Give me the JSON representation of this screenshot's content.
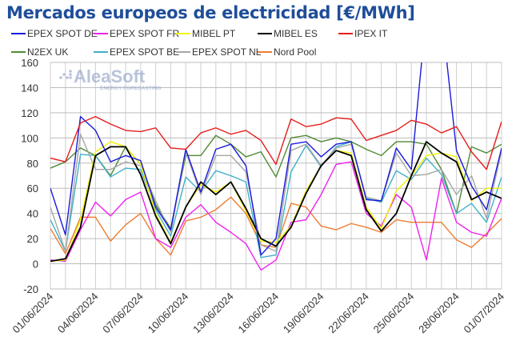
{
  "chart_data": {
    "type": "line",
    "title": "Mercados europeos de electricidad [€/MWh]",
    "xlabel": "",
    "ylabel": "",
    "ylim": [
      -20,
      160
    ],
    "yticks": [
      -20,
      0,
      20,
      40,
      60,
      80,
      100,
      120,
      140,
      160
    ],
    "grid": true,
    "legend_placement": "top",
    "x": [
      "01/06/2024",
      "02/06/2024",
      "03/06/2024",
      "04/06/2024",
      "05/06/2024",
      "06/06/2024",
      "07/06/2024",
      "08/06/2024",
      "09/06/2024",
      "10/06/2024",
      "11/06/2024",
      "12/06/2024",
      "13/06/2024",
      "14/06/2024",
      "15/06/2024",
      "16/06/2024",
      "17/06/2024",
      "18/06/2024",
      "19/06/2024",
      "20/06/2024",
      "21/06/2024",
      "22/06/2024",
      "23/06/2024",
      "24/06/2024",
      "25/06/2024",
      "26/06/2024",
      "27/06/2024",
      "28/06/2024",
      "29/06/2024",
      "30/06/2024",
      "01/07/2024"
    ],
    "xtick_labels": [
      "01/06/2024",
      "04/06/2024",
      "07/06/2024",
      "10/06/2024",
      "13/06/2024",
      "16/06/2024",
      "19/06/2024",
      "22/06/2024",
      "25/06/2024",
      "28/06/2024",
      "01/07/2024"
    ],
    "series": [
      {
        "name": "EPEX SPOT DE",
        "color": "#1a1adb",
        "values": [
          60,
          23,
          117,
          106,
          81,
          86,
          82,
          45,
          27,
          91,
          57,
          91,
          95,
          78,
          7,
          20,
          95,
          97,
          85,
          95,
          97,
          51,
          50,
          92,
          75,
          200,
          200,
          90,
          62,
          43,
          92
        ]
      },
      {
        "name": "EPEX SPOT FR",
        "color": "#ee22ee",
        "values": [
          3,
          2,
          27,
          49,
          38,
          51,
          57,
          20,
          13,
          37,
          47,
          33,
          25,
          16,
          -5,
          3,
          33,
          35,
          55,
          79,
          81,
          40,
          30,
          55,
          45,
          3,
          68,
          33,
          25,
          22,
          52
        ]
      },
      {
        "name": "MIBEL PT",
        "color": "#f2f200",
        "values": [
          2,
          3,
          35,
          89,
          97,
          93,
          79,
          40,
          17,
          45,
          63,
          57,
          65,
          42,
          18,
          17,
          30,
          58,
          78,
          90,
          88,
          45,
          28,
          58,
          70,
          86,
          88,
          85,
          50,
          60,
          60
        ]
      },
      {
        "name": "MIBEL ES",
        "color": "#000000",
        "values": [
          2,
          4,
          29,
          86,
          93,
          93,
          71,
          38,
          16,
          45,
          65,
          55,
          65,
          44,
          20,
          14,
          29,
          56,
          78,
          90,
          86,
          43,
          26,
          40,
          70,
          97,
          88,
          81,
          51,
          57,
          52
        ]
      },
      {
        "name": "IPEX IT",
        "color": "#e81c1c",
        "values": [
          84,
          81,
          112,
          117,
          111,
          106,
          105,
          108,
          92,
          91,
          104,
          108,
          103,
          106,
          98,
          79,
          115,
          109,
          111,
          116,
          115,
          98,
          102,
          106,
          114,
          111,
          104,
          109,
          89,
          75,
          113
        ]
      },
      {
        "name": "N2EX UK",
        "color": "#4f8a34",
        "values": [
          76,
          81,
          92,
          86,
          70,
          93,
          79,
          47,
          28,
          86,
          86,
          102,
          95,
          85,
          89,
          69,
          100,
          102,
          97,
          100,
          97,
          91,
          86,
          97,
          97,
          95,
          75,
          40,
          93,
          88,
          95
        ]
      },
      {
        "name": "EPEX SPOT BE",
        "color": "#3fb0c9",
        "values": [
          35,
          10,
          87,
          86,
          69,
          76,
          75,
          43,
          22,
          69,
          57,
          74,
          70,
          65,
          5,
          7,
          73,
          94,
          77,
          93,
          97,
          52,
          49,
          74,
          67,
          84,
          71,
          40,
          48,
          33,
          69
        ]
      },
      {
        "name": "EPEX SPOT NL",
        "color": "#a6a6a6",
        "values": [
          45,
          10,
          103,
          75,
          75,
          81,
          78,
          50,
          25,
          89,
          55,
          86,
          86,
          73,
          15,
          10,
          90,
          95,
          78,
          92,
          95,
          53,
          50,
          88,
          70,
          71,
          75,
          55,
          70,
          36,
          90
        ]
      },
      {
        "name": "Nord Pool",
        "color": "#ed7d31",
        "values": [
          28,
          8,
          37,
          37,
          18,
          31,
          40,
          20,
          7,
          34,
          37,
          43,
          53,
          40,
          15,
          13,
          48,
          45,
          30,
          27,
          32,
          29,
          25,
          35,
          33,
          33,
          33,
          19,
          13,
          24,
          36
        ]
      }
    ]
  },
  "watermark": {
    "brand": "AleaSoft",
    "tagline": "ENERGY FORECASTING"
  }
}
